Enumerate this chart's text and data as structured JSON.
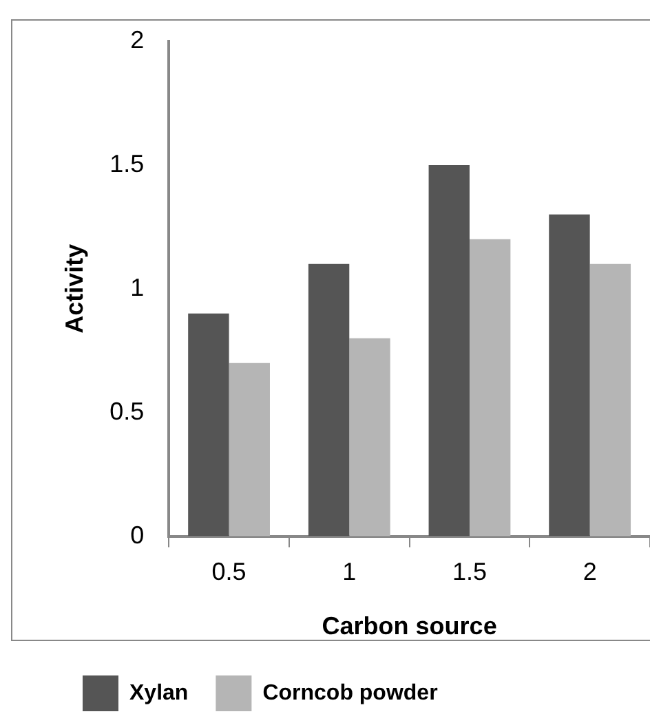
{
  "chart_data": {
    "type": "bar",
    "xlabel": "Carbon source",
    "ylabel": "Activity",
    "categories": [
      "0.5",
      "1",
      "1.5",
      "2"
    ],
    "series": [
      {
        "name": "Xylan",
        "color": "#555555",
        "values": [
          0.9,
          1.1,
          1.5,
          1.3
        ]
      },
      {
        "name": "Corncob powder",
        "color": "#b5b5b5",
        "values": [
          0.7,
          0.8,
          1.2,
          1.1
        ]
      }
    ],
    "ylim": [
      0,
      2
    ],
    "yticks": [
      0,
      0.5,
      1,
      1.5,
      2
    ],
    "grid": false,
    "legend": "bottom left"
  }
}
